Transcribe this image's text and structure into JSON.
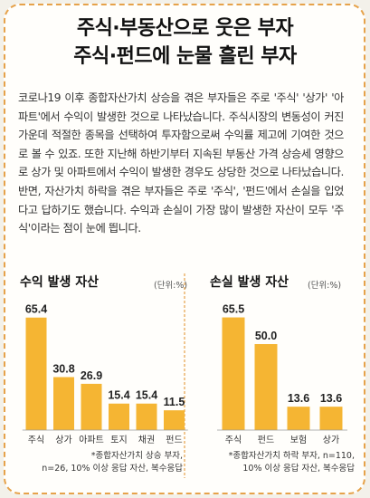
{
  "title": {
    "line1": "주식·부동산으로 웃은 부자",
    "line2": "주식·펀드에 눈물 흘린 부자"
  },
  "body_text": "코로나19 이후 종합자산가치 상승을 겪은 부자들은 주로 '주식' '상가' '아파트'에서 수익이 발생한 것으로 나타났습니다. 주식시장의 변동성이 커진 가운데 적절한 종목을 선택하여 투자함으로써 수익률 제고에 기여한 것으로 볼 수 있죠. 또한 지난해 하반기부터 지속된 부동산 가격 상승세 영향으로 상가 및 아파트에서 수익이 발생한 경우도 상당한 것으로 나타났습니다. 반면, 자산가치 하락을 겪은 부자들은 주로 '주식', '펀드'에서 손실을 입었다고 답하기도 했습니다. 수익과 손실이 가장 많이 발생한 자산이 모두 '주식'이라는 점이 눈에 띕니다.",
  "colors": {
    "bar": "#f5b533",
    "border": "#e6a24a"
  },
  "chart_data": [
    {
      "type": "bar",
      "title": "수익 발생 자산",
      "unit": "(단위:%)",
      "categories": [
        "주식",
        "상가",
        "아파트",
        "토지",
        "채권",
        "펀드"
      ],
      "values": [
        65.4,
        30.8,
        26.9,
        15.4,
        15.4,
        11.5
      ],
      "value_labels": [
        "65.4",
        "30.8",
        "26.9",
        "15.4",
        "15.4",
        "11.5"
      ],
      "ylim": [
        0,
        70
      ],
      "note_line1": "*종합자산가치 상승 부자,",
      "note_line2": "n=26, 10% 이상 응답 자산, 복수응답"
    },
    {
      "type": "bar",
      "title": "손실 발생 자산",
      "unit": "(단위:%)",
      "categories": [
        "주식",
        "펀드",
        "보험",
        "상가"
      ],
      "values": [
        65.5,
        50.0,
        13.6,
        13.6
      ],
      "value_labels": [
        "65.5",
        "50.0",
        "13.6",
        "13.6"
      ],
      "ylim": [
        0,
        70
      ],
      "note_line1": "*종합자산가치 하락 부자, n=110,",
      "note_line2": "10% 이상 응답 자산, 복수응답"
    }
  ]
}
